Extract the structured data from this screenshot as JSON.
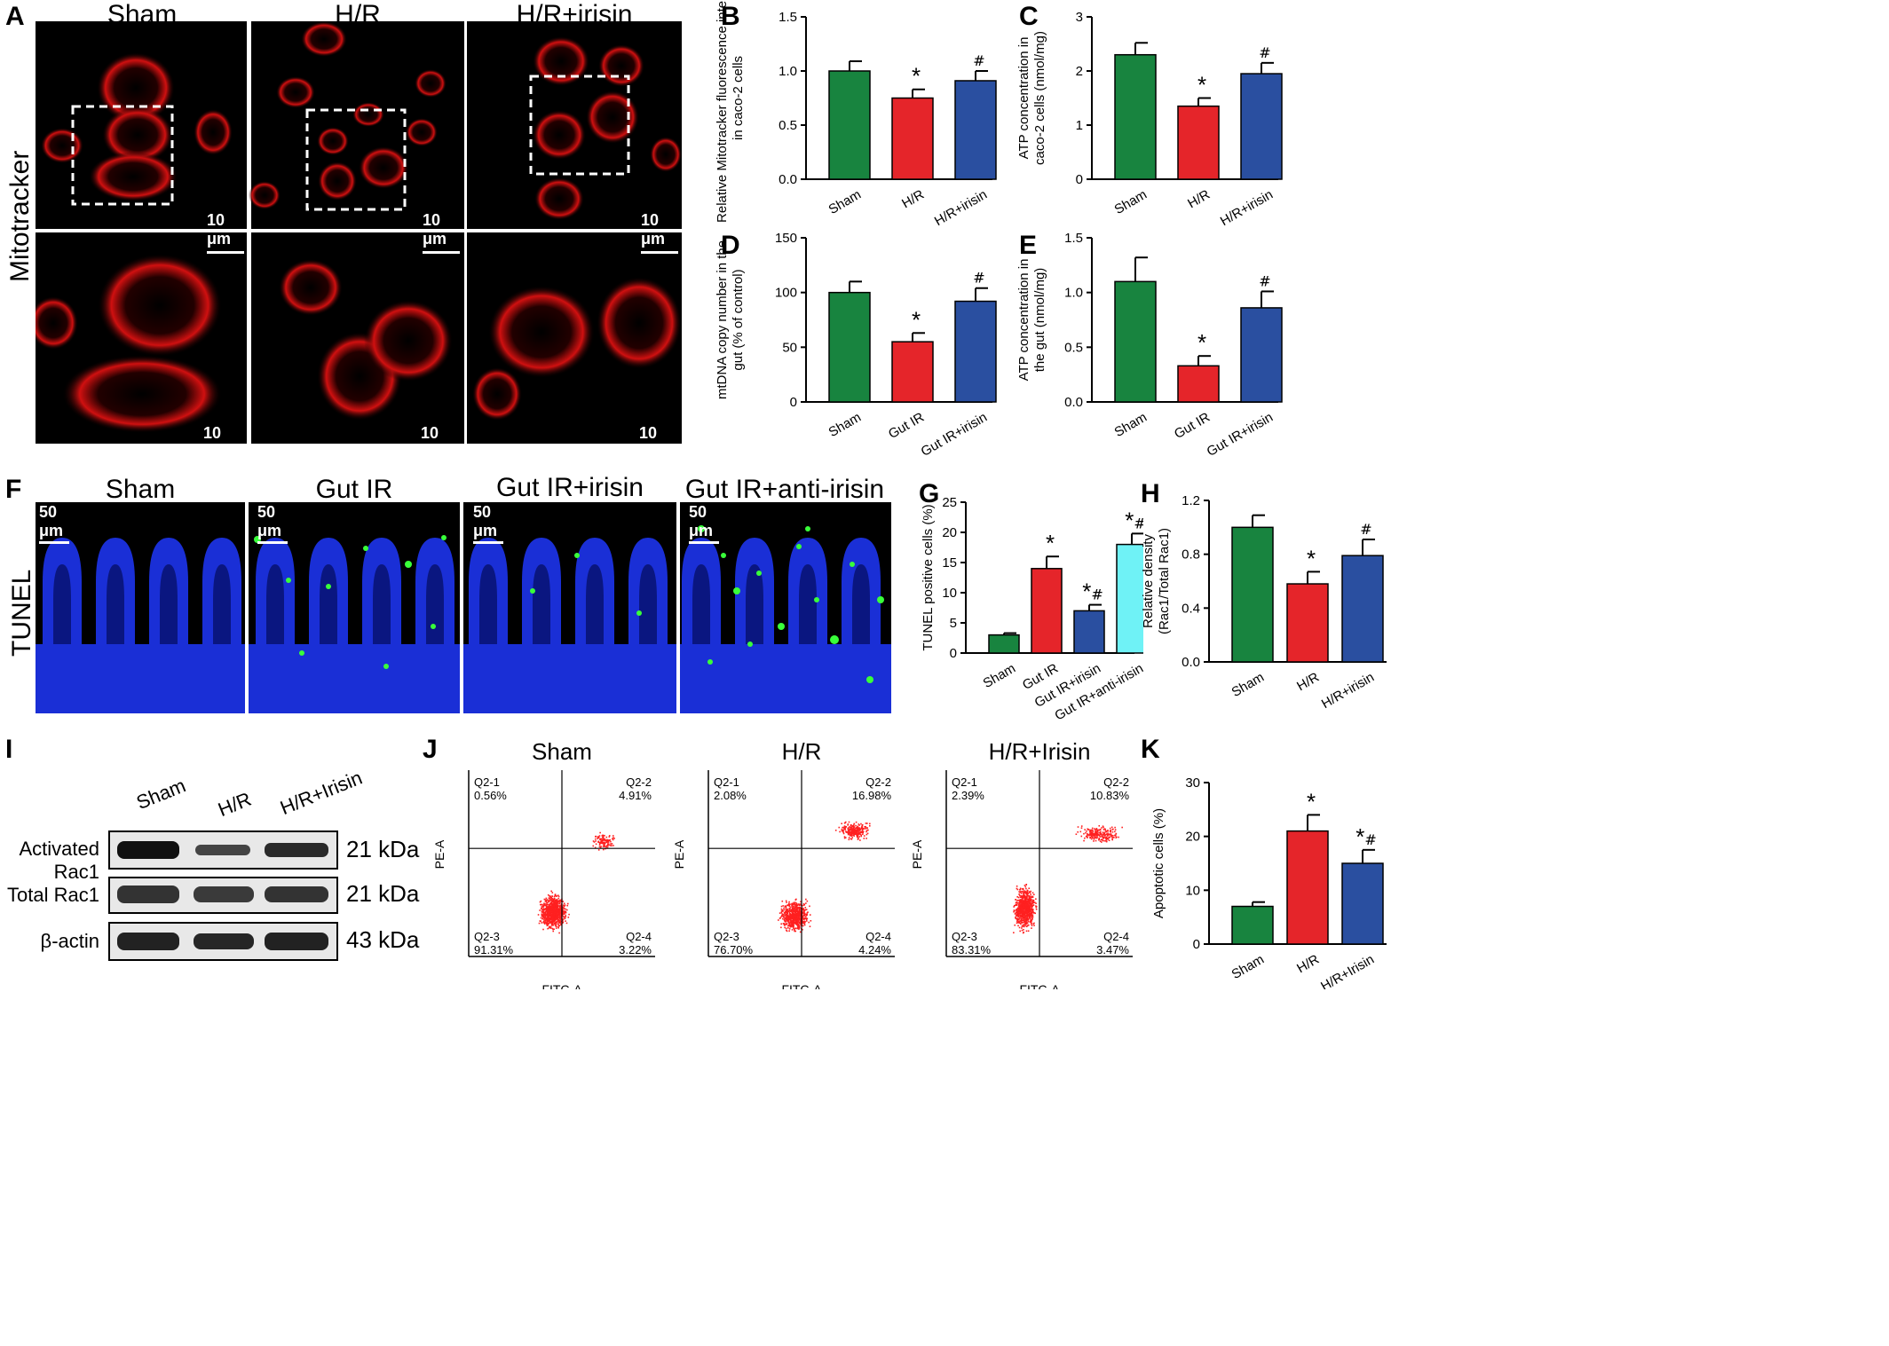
{
  "panel_letters": {
    "A": "A",
    "B": "B",
    "C": "C",
    "D": "D",
    "E": "E",
    "F": "F",
    "G": "G",
    "H": "H",
    "I": "I",
    "J": "J",
    "K": "K"
  },
  "panel_a": {
    "columns": [
      "Sham",
      "H/R",
      "H/R+irisin"
    ],
    "row_label": "Mitotracker",
    "scale": "10 μm"
  },
  "panel_f": {
    "columns": [
      "Sham",
      "Gut IR",
      "Gut IR+irisin",
      "Gut IR+anti-irisin"
    ],
    "row_label": "TUNEL",
    "scale": "50 μm"
  },
  "panel_i": {
    "lanes": [
      "Sham",
      "H/R",
      "H/R+Irisin"
    ],
    "rows": [
      {
        "label": "Activated Rac1",
        "kda": "21 kDa"
      },
      {
        "label": "Total Rac1",
        "kda": "21 kDa"
      },
      {
        "label": "β-actin",
        "kda": "43 kDa"
      }
    ]
  },
  "panel_j": {
    "plots": [
      {
        "title": "Sham",
        "q1": "Q2-1",
        "q1v": "0.56%",
        "q2": "Q2-2",
        "q2v": "4.91%",
        "q3": "Q2-3",
        "q3v": "91.31%",
        "q4": "Q2-4",
        "q4v": "3.22%"
      },
      {
        "title": "H/R",
        "q1": "Q2-1",
        "q1v": "2.08%",
        "q2": "Q2-2",
        "q2v": "16.98%",
        "q3": "Q2-3",
        "q3v": "76.70%",
        "q4": "Q2-4",
        "q4v": "4.24%"
      },
      {
        "title": "H/R+Irisin",
        "q1": "Q2-1",
        "q1v": "2.39%",
        "q2": "Q2-2",
        "q2v": "10.83%",
        "q3": "Q2-3",
        "q3v": "83.31%",
        "q4": "Q2-4",
        "q4v": "3.47%"
      }
    ],
    "xlabel": "FITC-A",
    "ylabel": "PE-A"
  },
  "colors": {
    "green": "#18843f",
    "red": "#e5252a",
    "blue": "#2a4fa0",
    "cyan": "#6ff2f6",
    "dots": "#ff2020"
  },
  "chart_data": [
    {
      "id": "B",
      "type": "bar",
      "categories": [
        "Sham",
        "H/R",
        "H/R+irisin"
      ],
      "values": [
        1.0,
        0.75,
        0.91
      ],
      "errors": [
        0.09,
        0.08,
        0.09
      ],
      "marks": [
        "",
        "*",
        "#"
      ],
      "ylabel": "Relative Mitotracker fluorescence intensity in caco-2 cells",
      "ylim": [
        0,
        1.5
      ],
      "yticks": [
        "0.0",
        "0.5",
        "1.0",
        "1.5"
      ],
      "colors": [
        "green",
        "red",
        "blue"
      ]
    },
    {
      "id": "C",
      "type": "bar",
      "categories": [
        "Sham",
        "H/R",
        "H/R+irisin"
      ],
      "values": [
        2.3,
        1.35,
        1.95
      ],
      "errors": [
        0.22,
        0.15,
        0.2
      ],
      "marks": [
        "",
        "*",
        "#"
      ],
      "ylabel": "ATP concentration in caco-2 cells (nmol/mg)",
      "ylim": [
        0,
        3
      ],
      "yticks": [
        "0",
        "1",
        "2",
        "3"
      ],
      "colors": [
        "green",
        "red",
        "blue"
      ]
    },
    {
      "id": "D",
      "type": "bar",
      "categories": [
        "Sham",
        "Gut IR",
        "Gut IR+irisin"
      ],
      "values": [
        100,
        55,
        92
      ],
      "errors": [
        10,
        8,
        12
      ],
      "marks": [
        "",
        "*",
        "#"
      ],
      "ylabel": "mtDNA copy number in the gut (% of control)",
      "ylim": [
        0,
        150
      ],
      "yticks": [
        "0",
        "50",
        "100",
        "150"
      ],
      "colors": [
        "green",
        "red",
        "blue"
      ]
    },
    {
      "id": "E",
      "type": "bar",
      "categories": [
        "Sham",
        "Gut IR",
        "Gut IR+irisin"
      ],
      "values": [
        1.1,
        0.33,
        0.86
      ],
      "errors": [
        0.22,
        0.09,
        0.15
      ],
      "marks": [
        "",
        "*",
        "#"
      ],
      "ylabel": "ATP concentration in the gut (nmol/mg)",
      "ylim": [
        0,
        1.5
      ],
      "yticks": [
        "0.0",
        "0.5",
        "1.0",
        "1.5"
      ],
      "colors": [
        "green",
        "red",
        "blue"
      ]
    },
    {
      "id": "G",
      "type": "bar",
      "categories": [
        "Sham",
        "Gut IR",
        "Gut IR+irisin",
        "Gut IR+anti-irisin"
      ],
      "values": [
        3,
        14,
        7,
        18
      ],
      "errors": [
        0.3,
        2,
        1,
        1.8
      ],
      "marks": [
        "",
        "*",
        "*#",
        "*#"
      ],
      "ylabel": "TUNEL positive cells (%)",
      "ylim": [
        0,
        25
      ],
      "yticks": [
        "0",
        "5",
        "10",
        "15",
        "20",
        "25"
      ],
      "colors": [
        "green",
        "red",
        "blue",
        "cyan"
      ]
    },
    {
      "id": "H",
      "type": "bar",
      "categories": [
        "Sham",
        "H/R",
        "H/R+irisin"
      ],
      "values": [
        1.0,
        0.58,
        0.79
      ],
      "errors": [
        0.09,
        0.09,
        0.12
      ],
      "marks": [
        "",
        "*",
        "#"
      ],
      "ylabel": "Relative density (Rac1/Total Rac1)",
      "ylim": [
        0,
        1.2
      ],
      "yticks": [
        "0.0",
        "0.4",
        "0.8",
        "1.2"
      ],
      "colors": [
        "green",
        "red",
        "blue"
      ]
    },
    {
      "id": "K",
      "type": "bar",
      "categories": [
        "Sham",
        "H/R",
        "H/R+Irisin"
      ],
      "values": [
        7,
        21,
        15
      ],
      "errors": [
        0.8,
        3,
        2.5
      ],
      "marks": [
        "",
        "*",
        "*#"
      ],
      "ylabel": "Apoptotic cells (%)",
      "ylim": [
        0,
        30
      ],
      "yticks": [
        "0",
        "10",
        "20",
        "30"
      ],
      "colors": [
        "green",
        "red",
        "blue"
      ]
    }
  ]
}
